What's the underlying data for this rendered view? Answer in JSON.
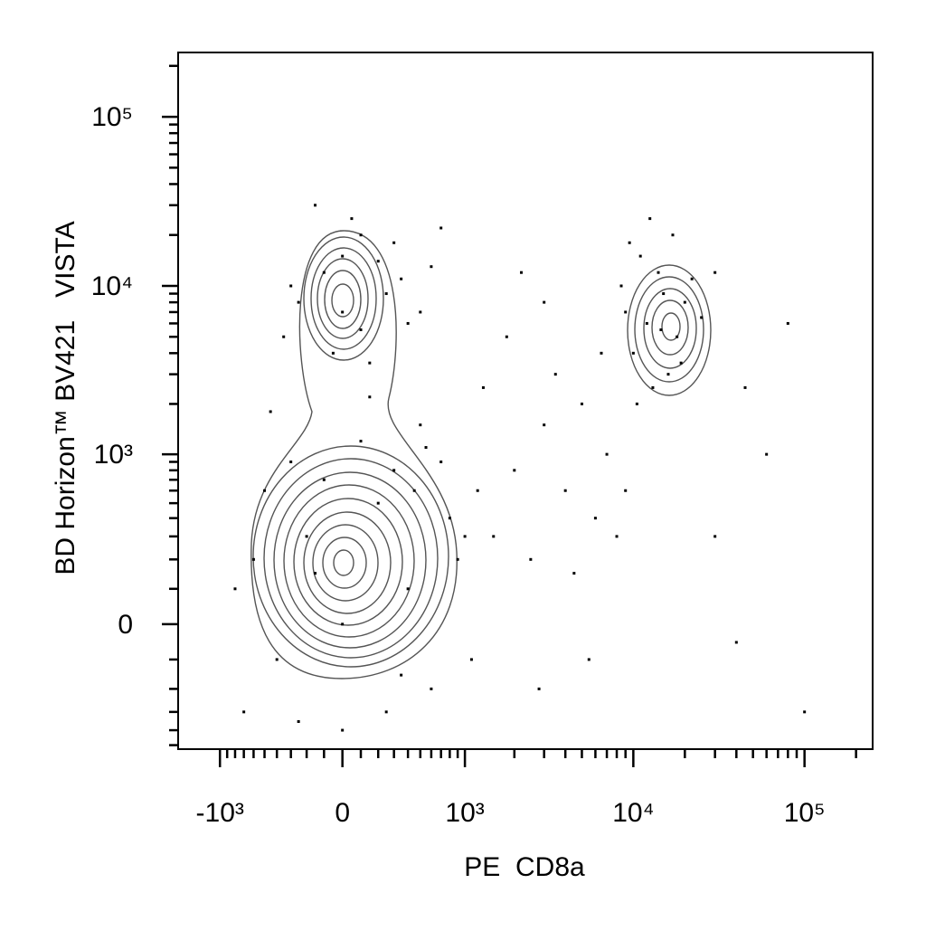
{
  "chart_data": {
    "type": "scatter",
    "x_label": "PE  CD8a",
    "y_label": "BD Horizon™ BV421   VISTA",
    "color": "#000000",
    "x": [
      -250,
      -100,
      0,
      100,
      250,
      400,
      -350,
      50,
      200,
      -150,
      300,
      500,
      -50,
      150,
      350,
      -300,
      600,
      0,
      100,
      700,
      -600,
      -400,
      -200,
      0,
      200,
      400,
      600,
      800,
      -500,
      -300,
      100,
      300,
      500,
      -700,
      0,
      -100,
      250,
      700,
      900,
      -800,
      1000,
      1200,
      -450,
      150,
      350,
      -250,
      550,
      -150,
      450,
      1100,
      12000,
      15000,
      10000,
      18000,
      14000,
      9000,
      20000,
      16000,
      11000,
      22000,
      13000,
      8500,
      17000,
      25000,
      12500,
      19000,
      10500,
      14500,
      30000,
      9500,
      1500,
      2000,
      3000,
      2500,
      4000,
      5000,
      6000,
      3500,
      7000,
      1800,
      2200,
      3000,
      8000,
      4500,
      1300,
      6500,
      9000,
      5500,
      30000,
      40000,
      60000,
      80000,
      100000,
      45000,
      2800
    ],
    "y": [
      8000,
      12000,
      15000,
      20000,
      9000,
      6000,
      5000,
      25000,
      14000,
      30000,
      18000,
      7000,
      4000,
      3500,
      11000,
      10000,
      13000,
      7000,
      5500,
      22000,
      200,
      -100,
      300,
      0,
      500,
      100,
      -200,
      400,
      600,
      900,
      1200,
      800,
      1500,
      -300,
      -400,
      700,
      -300,
      900,
      200,
      100,
      300,
      600,
      1800,
      2200,
      -150,
      -350,
      1100,
      150,
      600,
      -100,
      6000,
      9000,
      4000,
      5000,
      12000,
      7000,
      8000,
      3000,
      15000,
      11000,
      2500,
      10000,
      20000,
      6500,
      25000,
      3500,
      2000,
      5500,
      12000,
      18000,
      300,
      800,
      1500,
      200,
      600,
      2000,
      400,
      3000,
      1000,
      5000,
      12000,
      8000,
      300,
      150,
      2500,
      4000,
      600,
      -100,
      300,
      -50,
      1000,
      6000,
      -300,
      2500,
      -200
    ],
    "xlim": [
      -1800,
      250000
    ],
    "ylim": [
      -530,
      240000
    ],
    "xticks": [
      {
        "value": -1000,
        "label": "-10³"
      },
      0,
      {
        "value": 1000,
        "label": "10³"
      },
      {
        "value": 10000,
        "label": "10⁴"
      },
      {
        "value": 100000,
        "label": "10⁵"
      }
    ],
    "yticks": [
      0,
      {
        "value": 1000,
        "label": "10³"
      },
      {
        "value": 10000,
        "label": "10⁴"
      },
      {
        "value": 100000,
        "label": "10⁵"
      }
    ],
    "xminorticks": [
      -900,
      -800,
      -700,
      -600,
      -500,
      -400,
      -300,
      -200,
      -100,
      100,
      200,
      300,
      400,
      500,
      600,
      700,
      800,
      900,
      2000,
      3000,
      4000,
      5000,
      6000,
      7000,
      8000,
      9000,
      20000,
      30000,
      40000,
      50000,
      60000,
      70000,
      80000,
      90000,
      200000
    ],
    "yminorticks": [
      -500,
      -400,
      -300,
      -200,
      -100,
      100,
      200,
      300,
      400,
      500,
      600,
      700,
      800,
      900,
      2000,
      3000,
      4000,
      5000,
      6000,
      7000,
      8000,
      9000,
      20000,
      30000,
      40000,
      50000,
      60000,
      70000,
      80000,
      90000,
      200000
    ]
  }
}
